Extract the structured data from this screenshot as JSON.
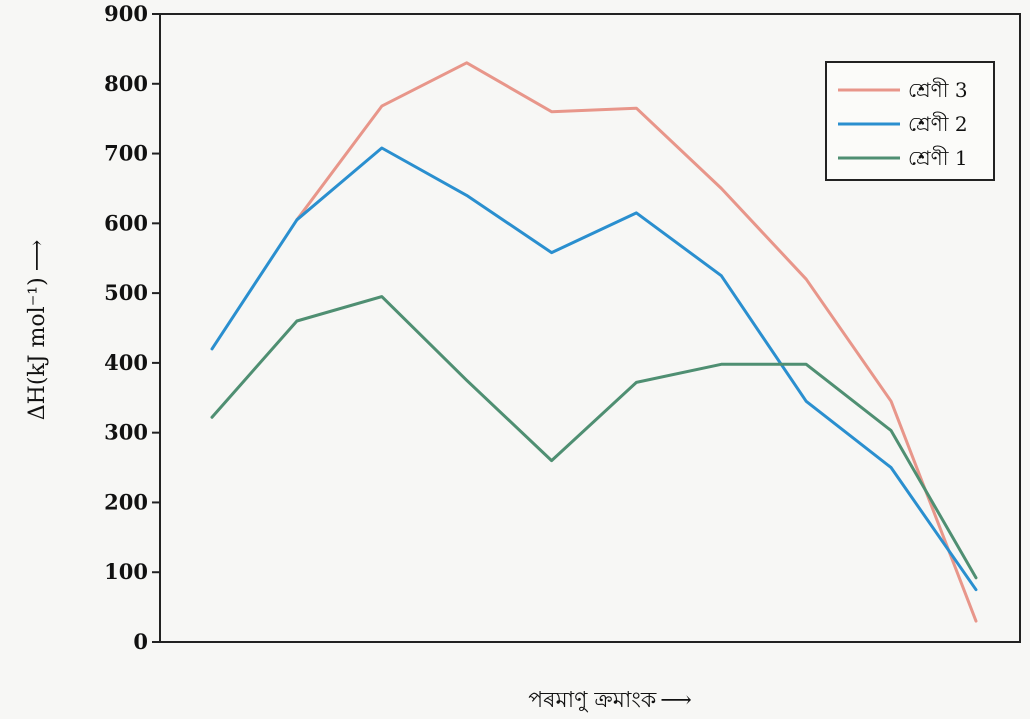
{
  "chart_data": {
    "type": "line",
    "title": "",
    "ylabel": "ΔH(kJ mol⁻¹)",
    "ylabel_arrow": "⟶",
    "xlabel": "পৰমাণু ক্ৰমাংক",
    "xlabel_arrow": "⟶",
    "ylim": [
      0,
      900
    ],
    "yticks": [
      "0",
      "100",
      "200",
      "300",
      "400",
      "500",
      "600",
      "700",
      "800",
      "900"
    ],
    "x": [
      1,
      2,
      3,
      4,
      5,
      6,
      7,
      8,
      9,
      10
    ],
    "xlim": [
      1,
      10
    ],
    "grid": false,
    "legend_position": "top-right",
    "series": [
      {
        "name": "শ্ৰেণী 3",
        "color": "#e8968a",
        "values": [
          null,
          605,
          768,
          830,
          760,
          765,
          650,
          520,
          345,
          30
        ]
      },
      {
        "name": "শ্ৰেণী 2",
        "color": "#2a8fcf",
        "values": [
          420,
          605,
          708,
          640,
          558,
          615,
          525,
          345,
          250,
          75
        ]
      },
      {
        "name": "শ্ৰেণী 1",
        "color": "#4f8f72",
        "values": [
          322,
          460,
          495,
          375,
          260,
          372,
          398,
          398,
          303,
          92
        ]
      }
    ]
  }
}
